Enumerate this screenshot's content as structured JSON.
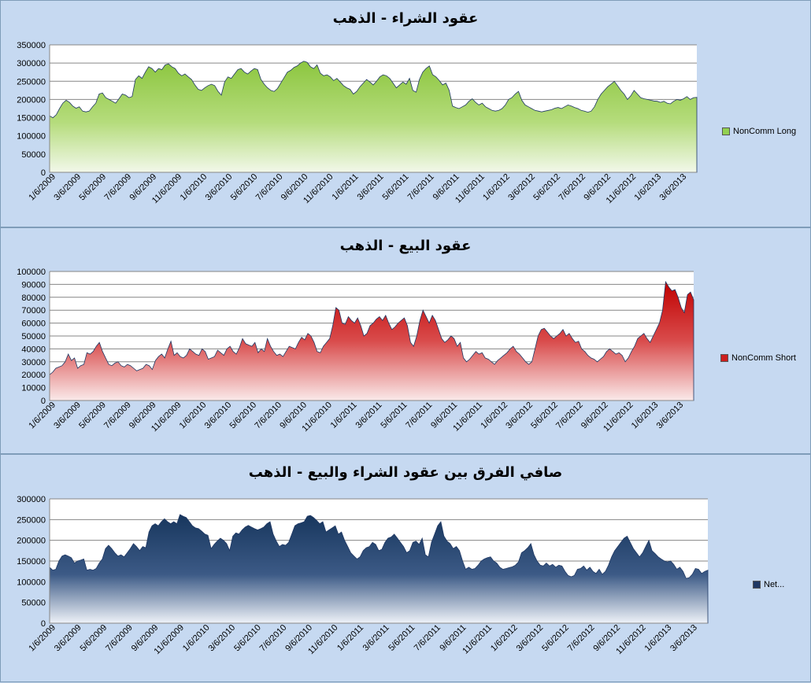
{
  "chart_data": [
    {
      "type": "area",
      "title": "عقود الشراء - الذهب",
      "series": [
        {
          "name": "NonComm Long",
          "color": "#92d050"
        }
      ],
      "ylim": [
        0,
        350000
      ],
      "yticks": [
        0,
        50000,
        100000,
        150000,
        200000,
        250000,
        300000,
        350000
      ],
      "xticks": [
        "1/6/2009",
        "3/6/2009",
        "5/6/2009",
        "7/6/2009",
        "9/6/2009",
        "11/6/2009",
        "1/6/2010",
        "3/6/2010",
        "5/6/2010",
        "7/6/2010",
        "9/6/2010",
        "11/6/2010",
        "1/6/2011",
        "3/6/2011",
        "5/6/2011",
        "7/6/2011",
        "9/6/2011",
        "11/6/2011",
        "1/6/2012",
        "3/6/2012",
        "5/6/2012",
        "7/6/2012",
        "9/6/2012",
        "11/6/2012",
        "1/6/2013",
        "3/6/2013"
      ],
      "values": [
        155000,
        150000,
        158000,
        175000,
        190000,
        198000,
        192000,
        182000,
        176000,
        180000,
        168000,
        166000,
        168000,
        180000,
        190000,
        215000,
        218000,
        205000,
        200000,
        195000,
        190000,
        202000,
        215000,
        212000,
        205000,
        208000,
        255000,
        265000,
        258000,
        275000,
        290000,
        285000,
        275000,
        285000,
        282000,
        295000,
        298000,
        290000,
        285000,
        272000,
        265000,
        270000,
        262000,
        255000,
        240000,
        228000,
        225000,
        232000,
        238000,
        242000,
        238000,
        222000,
        212000,
        248000,
        262000,
        258000,
        270000,
        282000,
        285000,
        275000,
        270000,
        278000,
        285000,
        282000,
        255000,
        242000,
        232000,
        225000,
        222000,
        230000,
        245000,
        260000,
        275000,
        280000,
        288000,
        292000,
        300000,
        305000,
        302000,
        290000,
        285000,
        295000,
        272000,
        265000,
        268000,
        262000,
        252000,
        258000,
        248000,
        238000,
        232000,
        228000,
        215000,
        222000,
        235000,
        245000,
        255000,
        248000,
        240000,
        250000,
        262000,
        268000,
        265000,
        258000,
        245000,
        232000,
        240000,
        248000,
        242000,
        258000,
        225000,
        220000,
        255000,
        275000,
        285000,
        292000,
        268000,
        262000,
        252000,
        240000,
        245000,
        225000,
        182000,
        178000,
        175000,
        180000,
        185000,
        195000,
        202000,
        192000,
        185000,
        190000,
        180000,
        175000,
        170000,
        168000,
        170000,
        175000,
        185000,
        200000,
        205000,
        215000,
        222000,
        198000,
        185000,
        180000,
        175000,
        170000,
        168000,
        166000,
        168000,
        170000,
        172000,
        176000,
        178000,
        175000,
        180000,
        185000,
        182000,
        178000,
        175000,
        170000,
        168000,
        165000,
        168000,
        180000,
        200000,
        215000,
        225000,
        235000,
        242000,
        250000,
        238000,
        225000,
        215000,
        200000,
        210000,
        225000,
        215000,
        205000,
        202000,
        200000,
        198000,
        196000,
        195000,
        192000,
        195000,
        190000,
        188000,
        195000,
        200000,
        198000,
        202000,
        208000,
        200000,
        205000,
        206000
      ]
    },
    {
      "type": "area",
      "title": "عقود البيع - الذهب",
      "series": [
        {
          "name": "NonComm Short",
          "color": "#cc1e1e"
        }
      ],
      "ylim": [
        0,
        100000
      ],
      "yticks": [
        0,
        10000,
        20000,
        30000,
        40000,
        50000,
        60000,
        70000,
        80000,
        90000,
        100000
      ],
      "xticks": [
        "1/6/2009",
        "3/6/2009",
        "5/6/2009",
        "7/6/2009",
        "9/6/2009",
        "11/6/2009",
        "1/6/2010",
        "3/6/2010",
        "5/6/2010",
        "7/6/2010",
        "9/6/2010",
        "11/6/2010",
        "1/6/2011",
        "3/6/2011",
        "5/6/2011",
        "7/6/2011",
        "9/6/2011",
        "11/6/2011",
        "1/6/2012",
        "3/6/2012",
        "5/6/2012",
        "7/6/2012",
        "9/6/2012",
        "11/6/2012",
        "1/6/2013",
        "3/6/2013"
      ],
      "values": [
        20000,
        22000,
        25000,
        26000,
        27000,
        30000,
        36000,
        31000,
        33000,
        25000,
        27000,
        28000,
        37000,
        36000,
        38000,
        42000,
        45000,
        38000,
        33000,
        28000,
        27000,
        29000,
        30000,
        27000,
        26000,
        28000,
        27000,
        25000,
        23000,
        24000,
        25000,
        28000,
        27000,
        24000,
        31000,
        34000,
        36000,
        33000,
        40000,
        46000,
        35000,
        37000,
        34000,
        33000,
        35000,
        40000,
        38000,
        36000,
        35000,
        40000,
        38000,
        32000,
        33000,
        34000,
        39000,
        37000,
        35000,
        40000,
        42000,
        38000,
        36000,
        41000,
        48000,
        44000,
        43000,
        42000,
        45000,
        37000,
        40000,
        38000,
        48000,
        42000,
        38000,
        35000,
        36000,
        34000,
        38000,
        42000,
        41000,
        40000,
        45000,
        49000,
        47000,
        52000,
        50000,
        45000,
        38000,
        37000,
        42000,
        45000,
        48000,
        58000,
        72000,
        70000,
        60000,
        59000,
        65000,
        62000,
        60000,
        64000,
        58000,
        50000,
        52000,
        58000,
        60000,
        63000,
        65000,
        62000,
        66000,
        60000,
        55000,
        57000,
        60000,
        62000,
        64000,
        58000,
        45000,
        42000,
        50000,
        62000,
        70000,
        65000,
        60000,
        66000,
        62000,
        55000,
        48000,
        45000,
        47000,
        50000,
        48000,
        42000,
        45000,
        33000,
        30000,
        32000,
        35000,
        38000,
        36000,
        37000,
        33000,
        32000,
        30000,
        28000,
        31000,
        33000,
        35000,
        37000,
        40000,
        42000,
        38000,
        36000,
        33000,
        30000,
        28000,
        30000,
        40000,
        50000,
        55000,
        56000,
        53000,
        50000,
        48000,
        50000,
        52000,
        55000,
        50000,
        52000,
        48000,
        45000,
        46000,
        40000,
        38000,
        35000,
        33000,
        32000,
        30000,
        32000,
        34000,
        38000,
        40000,
        38000,
        36000,
        37000,
        35000,
        30000,
        33000,
        38000,
        42000,
        48000,
        50000,
        52000,
        48000,
        45000,
        50000,
        55000,
        60000,
        70000,
        92000,
        88000,
        85000,
        86000,
        80000,
        72000,
        68000,
        82000,
        84000,
        78000
      ]
    },
    {
      "type": "area",
      "title": "صافي الفرق بين عقود الشراء والبيع - الذهب",
      "series": [
        {
          "name": "Net...",
          "color": "#1f3864"
        }
      ],
      "ylim": [
        0,
        300000
      ],
      "yticks": [
        0,
        50000,
        100000,
        150000,
        200000,
        250000,
        300000
      ],
      "xticks": [
        "1/6/2009",
        "3/6/2009",
        "5/6/2009",
        "7/6/2009",
        "9/6/2009",
        "11/6/2009",
        "1/6/2010",
        "3/6/2010",
        "5/6/2010",
        "7/6/2010",
        "9/6/2010",
        "11/6/2010",
        "1/6/2011",
        "3/6/2011",
        "5/6/2011",
        "7/6/2011",
        "9/6/2011",
        "11/6/2011",
        "1/6/2012",
        "3/6/2012",
        "5/6/2012",
        "7/6/2012",
        "9/6/2012",
        "11/6/2012",
        "1/6/2013",
        "3/6/2013"
      ],
      "values": [
        135000,
        128000,
        130000,
        150000,
        162000,
        165000,
        162000,
        158000,
        145000,
        150000,
        152000,
        155000,
        128000,
        130000,
        128000,
        132000,
        145000,
        155000,
        180000,
        188000,
        180000,
        170000,
        162000,
        165000,
        160000,
        170000,
        180000,
        192000,
        185000,
        175000,
        185000,
        182000,
        220000,
        235000,
        240000,
        235000,
        245000,
        252000,
        245000,
        240000,
        245000,
        240000,
        262000,
        258000,
        255000,
        245000,
        235000,
        230000,
        228000,
        222000,
        215000,
        212000,
        180000,
        190000,
        198000,
        205000,
        200000,
        192000,
        175000,
        210000,
        218000,
        215000,
        225000,
        232000,
        236000,
        232000,
        228000,
        225000,
        228000,
        232000,
        240000,
        245000,
        215000,
        198000,
        185000,
        190000,
        188000,
        195000,
        215000,
        235000,
        240000,
        242000,
        245000,
        258000,
        260000,
        255000,
        248000,
        240000,
        245000,
        220000,
        225000,
        230000,
        235000,
        215000,
        220000,
        200000,
        185000,
        170000,
        162000,
        155000,
        160000,
        175000,
        182000,
        185000,
        195000,
        190000,
        175000,
        178000,
        195000,
        205000,
        208000,
        215000,
        205000,
        195000,
        185000,
        170000,
        175000,
        195000,
        198000,
        190000,
        205000,
        165000,
        160000,
        195000,
        215000,
        235000,
        245000,
        210000,
        198000,
        192000,
        180000,
        185000,
        175000,
        150000,
        130000,
        135000,
        130000,
        132000,
        140000,
        150000,
        155000,
        158000,
        160000,
        150000,
        145000,
        135000,
        130000,
        132000,
        134000,
        136000,
        140000,
        148000,
        170000,
        175000,
        182000,
        192000,
        165000,
        150000,
        140000,
        138000,
        145000,
        138000,
        142000,
        135000,
        140000,
        138000,
        125000,
        115000,
        112000,
        115000,
        130000,
        132000,
        138000,
        128000,
        135000,
        125000,
        120000,
        130000,
        118000,
        125000,
        140000,
        160000,
        175000,
        185000,
        195000,
        205000,
        210000,
        195000,
        180000,
        170000,
        160000,
        170000,
        185000,
        200000,
        175000,
        168000,
        160000,
        155000,
        150000,
        148000,
        150000,
        142000,
        130000,
        135000,
        125000,
        108000,
        110000,
        118000,
        132000,
        130000,
        120000,
        125000,
        128000
      ]
    }
  ]
}
